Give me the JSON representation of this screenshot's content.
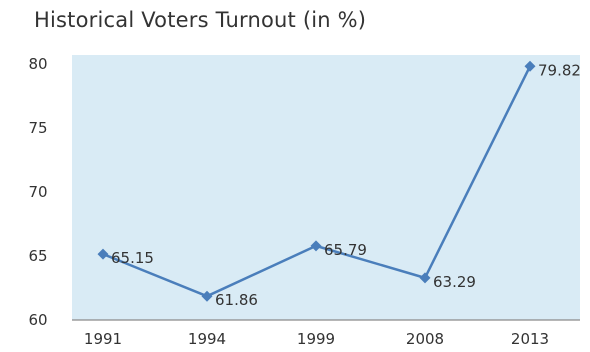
{
  "chart_data": {
    "type": "line",
    "title": "Historical Voters Turnout (in %)",
    "categories": [
      "1991",
      "1994",
      "1999",
      "2008",
      "2013"
    ],
    "series": [
      {
        "values": [
          65.15,
          61.86,
          65.79,
          63.29,
          79.82
        ]
      }
    ],
    "data_labels": [
      "65.15",
      "61.86",
      "65.79",
      "63.29",
      "79.82"
    ],
    "ylim": [
      60,
      80
    ],
    "yticks": [
      60,
      65,
      70,
      75,
      80
    ],
    "grid": false,
    "colors": {
      "plot_background": "#d9ebf5",
      "line": "#4a7ebb",
      "axis": "#8a8a8a"
    }
  }
}
